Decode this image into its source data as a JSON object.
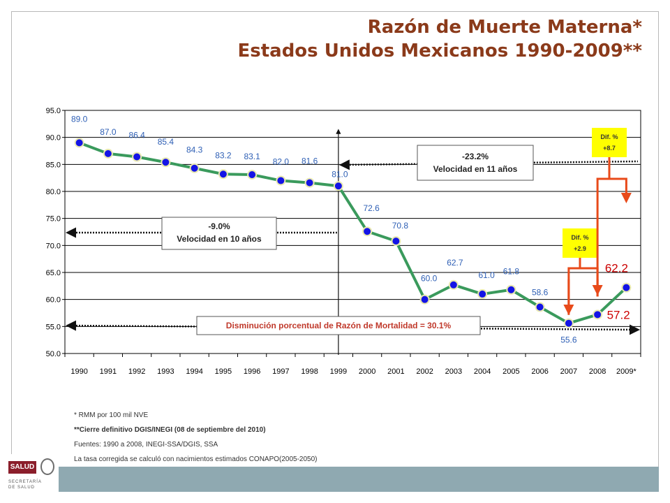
{
  "title": {
    "line1": "Razón de Muerte Materna*",
    "line2": "Estados Unidos Mexicanos 1990-2009**"
  },
  "chart_data": {
    "type": "line",
    "categories": [
      "1990",
      "1991",
      "1992",
      "1993",
      "1994",
      "1995",
      "1996",
      "1997",
      "1998",
      "1999",
      "2000",
      "2001",
      "2002",
      "2003",
      "2004",
      "2005",
      "2006",
      "2007",
      "2008",
      "2009*"
    ],
    "series": [
      {
        "values": [
          89.0,
          87.0,
          86.4,
          85.4,
          84.3,
          83.2,
          83.1,
          82.0,
          81.6,
          81.0,
          72.6,
          70.8,
          60.0,
          62.7,
          61.0,
          61.8,
          58.6,
          55.6,
          57.2,
          62.2
        ]
      }
    ],
    "data_labels": [
      "89.0",
      "87.0",
      "86.4",
      "85.4",
      "84.3",
      "83.2",
      "83.1",
      "82.0",
      "81.6",
      "81.0",
      "72.6",
      "70.8",
      "60.0",
      "62.7",
      "61.0",
      "61.8",
      "58.6",
      "55.6",
      "57.2",
      "62.2"
    ],
    "ylim": [
      50.0,
      95.0
    ],
    "yticks": [
      "50.0",
      "55.0",
      "60.0",
      "65.0",
      "70.0",
      "75.0",
      "80.0",
      "85.0",
      "90.0",
      "95.0"
    ],
    "grid": true,
    "colors": {
      "line": "#3a9a5c",
      "marker": "#1414e6",
      "marker_edge": "#e8e8b0",
      "arrow": "#e84a1a",
      "callout_bg": "#ffff00",
      "label": "#2e5fb5",
      "highlight_label": "#cc0000"
    },
    "annotations": {
      "box_left": {
        "pct": "-9.0%",
        "text": "Velocidad en 10 años"
      },
      "box_right": {
        "pct": "-23.2%",
        "text": "Velocidad en 11 años"
      },
      "box_total": "Disminución porcentual de Razón de Mortalidad = 30.1%",
      "dif1": {
        "title": "Dif. %",
        "value": "+2.9"
      },
      "dif2": {
        "title": "Dif. %",
        "value": "+8.7"
      }
    }
  },
  "notes": {
    "n1": "* RMM por 100 mil NVE",
    "n2": "**Cierre definitivo DGIS/INEGI (08 de septiembre del 2010)",
    "n3": "Fuentes: 1990 a 2008, INEGI-SSA/DGIS, SSA",
    "n4": "La tasa corregida se calculó con nacimientos estimados CONAPO(2005-2050)"
  },
  "logo": {
    "label": "SALUD",
    "sub1": "SECRETARÍA",
    "sub2": "DE SALUD"
  }
}
